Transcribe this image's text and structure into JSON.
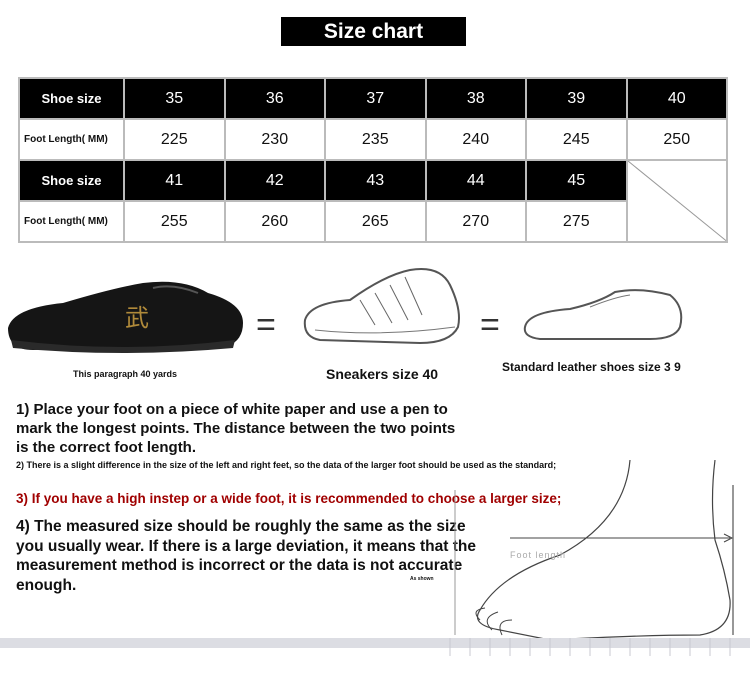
{
  "title": "Size chart",
  "table": {
    "row1": {
      "label": "Shoe size",
      "values": [
        "35",
        "36",
        "37",
        "38",
        "39",
        "40"
      ]
    },
    "row2": {
      "label": "Foot Length( MM)",
      "values": [
        "225",
        "230",
        "235",
        "240",
        "245",
        "250"
      ]
    },
    "row3": {
      "label": "Shoe size",
      "values": [
        "41",
        "42",
        "43",
        "44",
        "45"
      ]
    },
    "row4": {
      "label": "Foot Length( MM)",
      "values": [
        "255",
        "260",
        "265",
        "270",
        "275"
      ]
    }
  },
  "comparison": {
    "shoe1_caption": "This paragraph 40 yards",
    "shoe2_caption": "Sneakers size 40",
    "shoe3_caption": "Standard leather shoes size 3 9",
    "equals": "="
  },
  "instructions": {
    "step1": "1) Place your foot on a piece of white paper and use a pen to mark the longest points. The distance between the two points is the correct foot length.",
    "step2": "2) There is a slight difference in the size of the left and right feet, so the data of the larger foot should be used as the standard;",
    "step3": "3) If you have a high instep or a wide foot, it is recommended to choose a larger size;",
    "step4": "4) The measured size should be roughly the same as the size you usually wear. If there is a large deviation, it means that the measurement method is incorrect or the data is not accurate enough."
  },
  "diagram": {
    "foot_length_label": "Foot length",
    "as_shown": "As shown"
  },
  "colors": {
    "step3": "#a00000",
    "header_bg": "#000000"
  }
}
